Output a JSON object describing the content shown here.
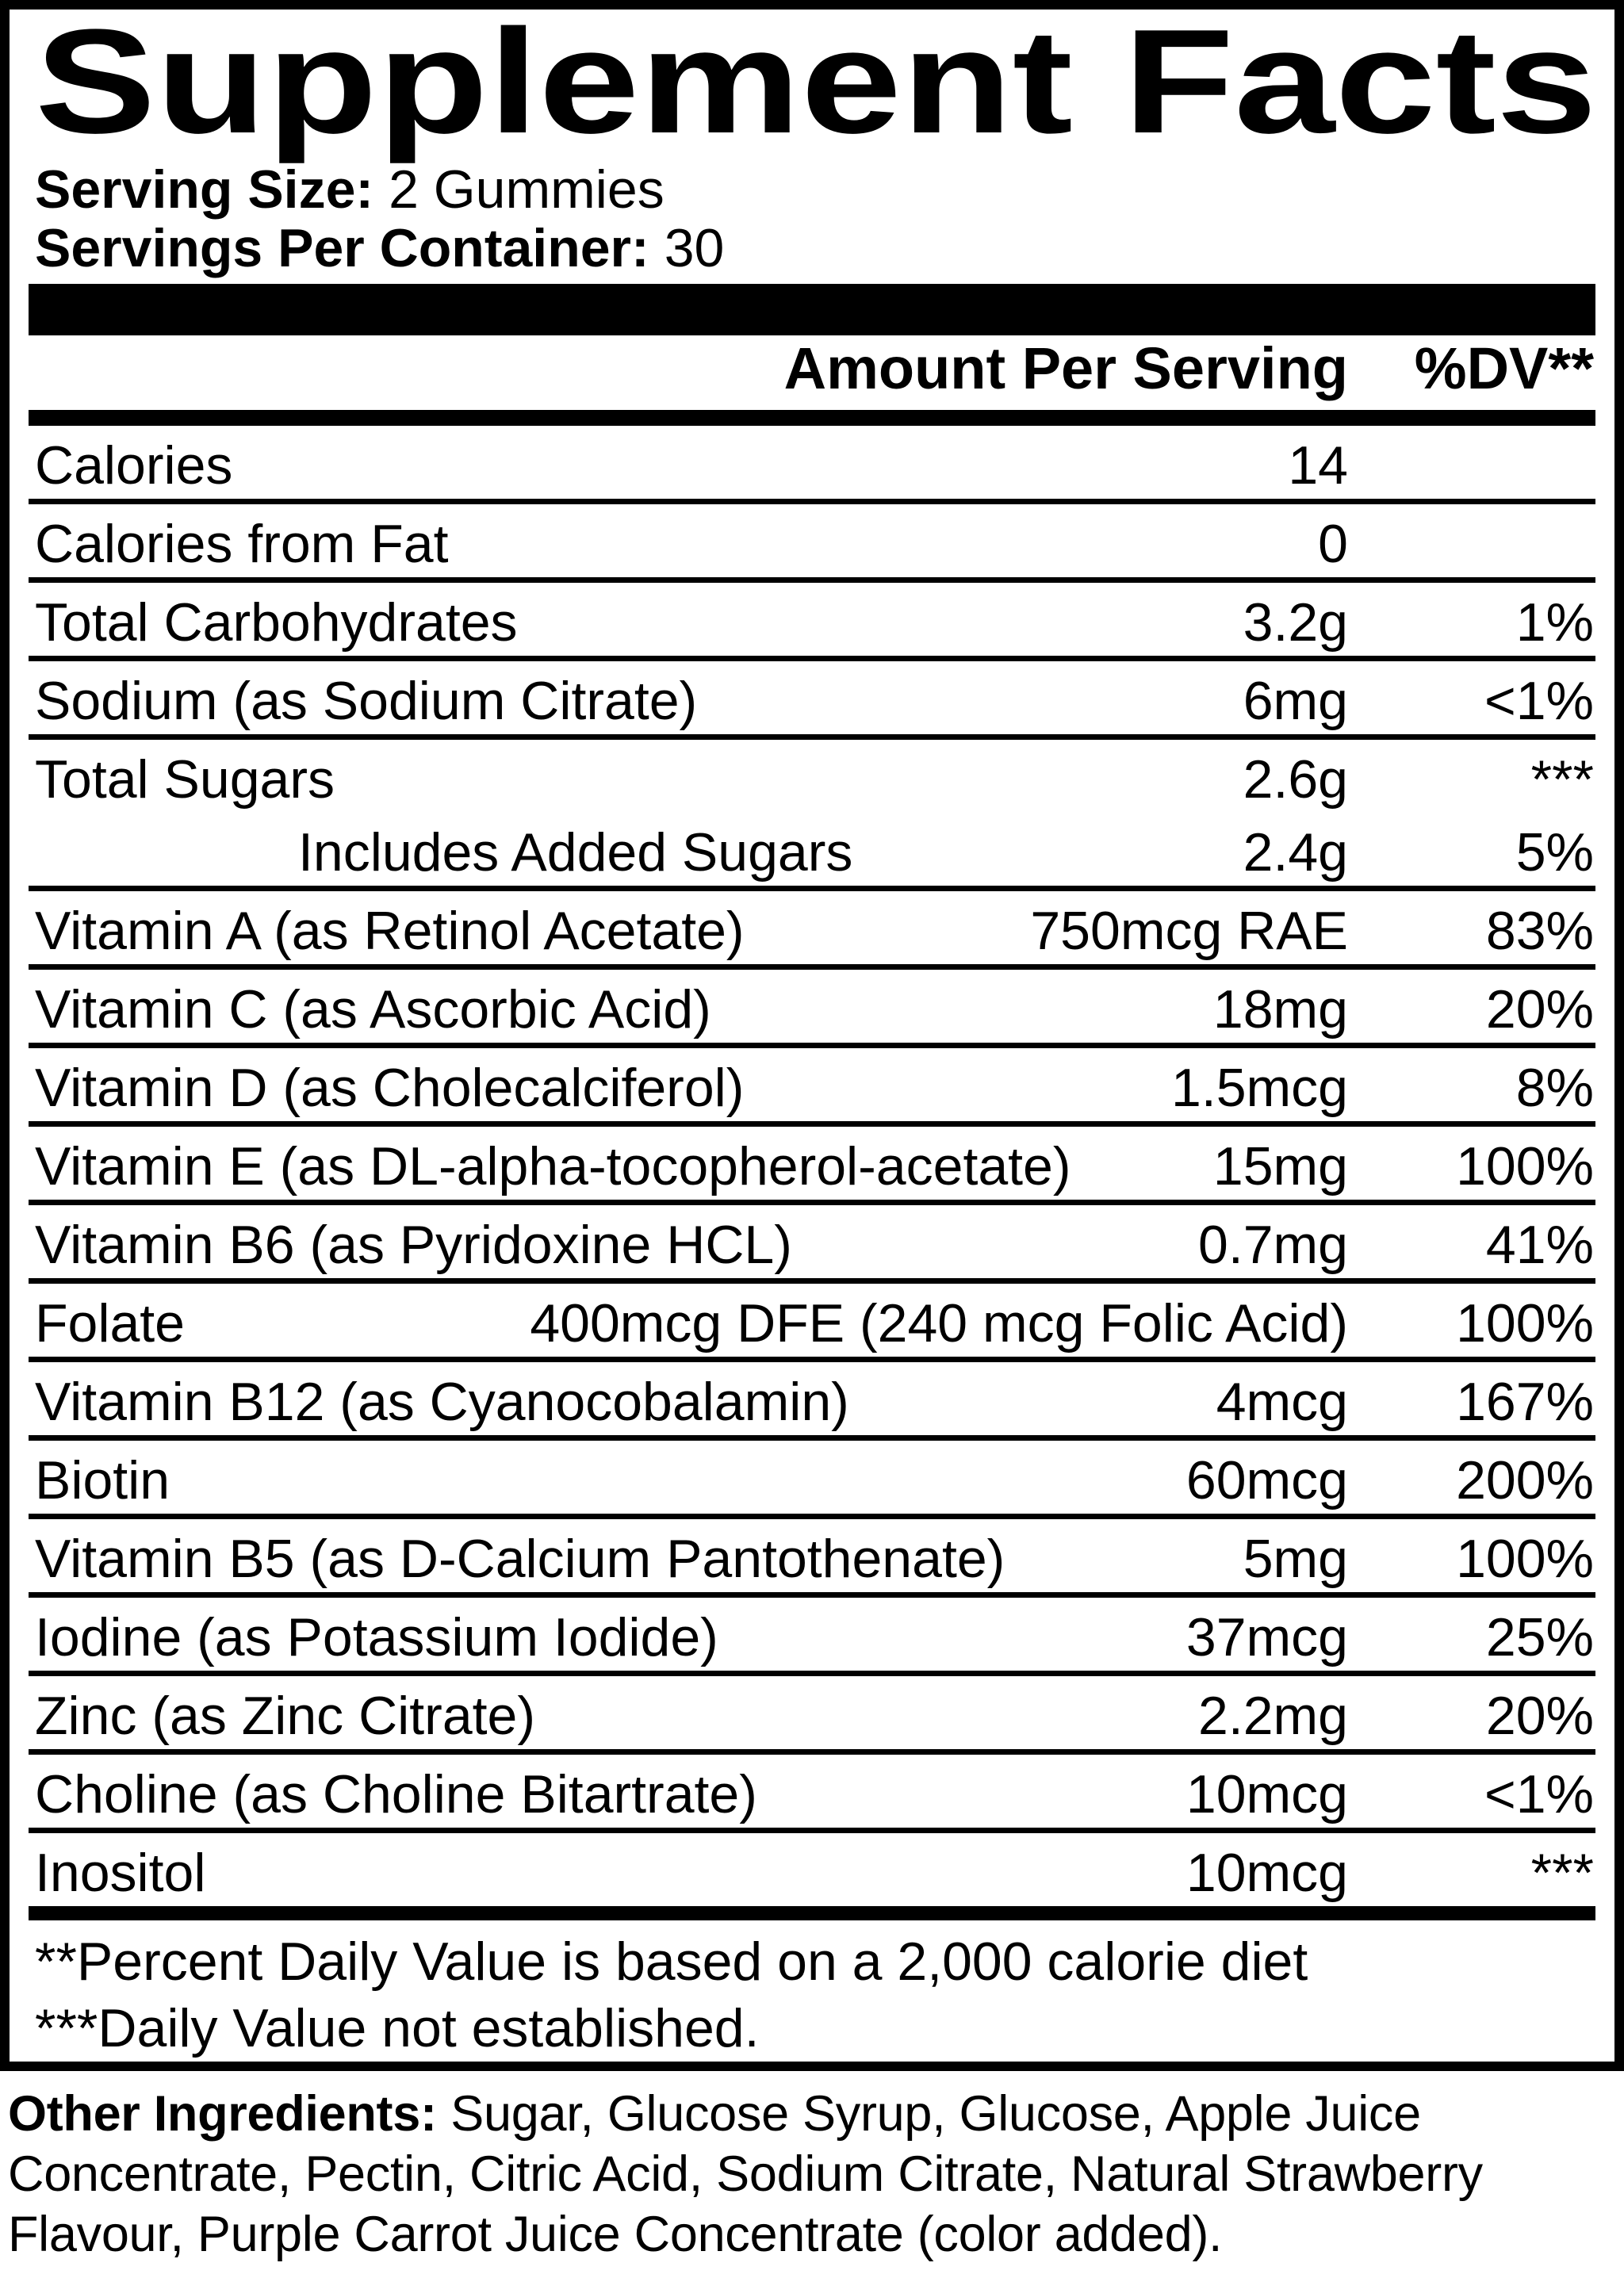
{
  "title": "Supplement Facts",
  "serving": {
    "size_label": "Serving Size:",
    "size_value": "2 Gummies",
    "per_container_label": "Servings Per Container:",
    "per_container_value": "30"
  },
  "table": {
    "amount_header": "Amount Per Serving",
    "dv_header": "%DV**",
    "rows": [
      {
        "name": "Calories",
        "amount": "14",
        "dv": "",
        "indent": false,
        "divider": true
      },
      {
        "name": "Calories from Fat",
        "amount": "0",
        "dv": "",
        "indent": false,
        "divider": true
      },
      {
        "name": "Total Carbohydrates",
        "amount": "3.2g",
        "dv": "1%",
        "indent": false,
        "divider": true
      },
      {
        "name": "Sodium (as Sodium Citrate)",
        "amount": "6mg",
        "dv": "<1%",
        "indent": false,
        "divider": true
      },
      {
        "name": "Total Sugars",
        "amount": "2.6g",
        "dv": "***",
        "indent": false,
        "divider": false
      },
      {
        "name": "Includes Added Sugars",
        "amount": "2.4g",
        "dv": "5%",
        "indent": true,
        "divider": true
      },
      {
        "name": "Vitamin A (as Retinol Acetate)",
        "amount": "750mcg RAE",
        "dv": "83%",
        "indent": false,
        "divider": true
      },
      {
        "name": "Vitamin C (as Ascorbic Acid)",
        "amount": "18mg",
        "dv": "20%",
        "indent": false,
        "divider": true
      },
      {
        "name": "Vitamin D (as Cholecalciferol)",
        "amount": "1.5mcg",
        "dv": "8%",
        "indent": false,
        "divider": true
      },
      {
        "name": "Vitamin E (as DL-alpha-tocopherol-acetate)",
        "amount": "15mg",
        "dv": "100%",
        "indent": false,
        "divider": true
      },
      {
        "name": "Vitamin B6 (as Pyridoxine HCL)",
        "amount": "0.7mg",
        "dv": "41%",
        "indent": false,
        "divider": true
      },
      {
        "name": "Folate",
        "amount": "400mcg DFE (240 mcg Folic Acid)",
        "dv": "100%",
        "indent": false,
        "divider": true
      },
      {
        "name": "Vitamin B12 (as Cyanocobalamin)",
        "amount": "4mcg",
        "dv": "167%",
        "indent": false,
        "divider": true
      },
      {
        "name": "Biotin",
        "amount": "60mcg",
        "dv": "200%",
        "indent": false,
        "divider": true
      },
      {
        "name": "Vitamin B5 (as D-Calcium Pantothenate)",
        "amount": "5mg",
        "dv": "100%",
        "indent": false,
        "divider": true
      },
      {
        "name": "Iodine (as Potassium Iodide)",
        "amount": "37mcg",
        "dv": "25%",
        "indent": false,
        "divider": true
      },
      {
        "name": "Zinc (as Zinc Citrate)",
        "amount": "2.2mg",
        "dv": "20%",
        "indent": false,
        "divider": true
      },
      {
        "name": "Choline (as Choline Bitartrate)",
        "amount": "10mcg",
        "dv": "<1%",
        "indent": false,
        "divider": true
      },
      {
        "name": "Inositol",
        "amount": "10mcg",
        "dv": "***",
        "indent": false,
        "divider": false
      }
    ]
  },
  "footnotes": {
    "line1": "**Percent Daily Value is based on a 2,000 calorie diet",
    "line2": "***Daily Value not established."
  },
  "other_ingredients": {
    "label": "Other Ingredients:",
    "line1": "Sugar, Glucose Syrup, Glucose, Apple Juice",
    "line2": "Concentrate, Pectin, Citric Acid, Sodium Citrate, Natural Strawberry",
    "line3": "Flavour, Purple Carrot Juice Concentrate (color added)."
  },
  "colors": {
    "ink": "#000000",
    "paper": "#ffffff"
  }
}
